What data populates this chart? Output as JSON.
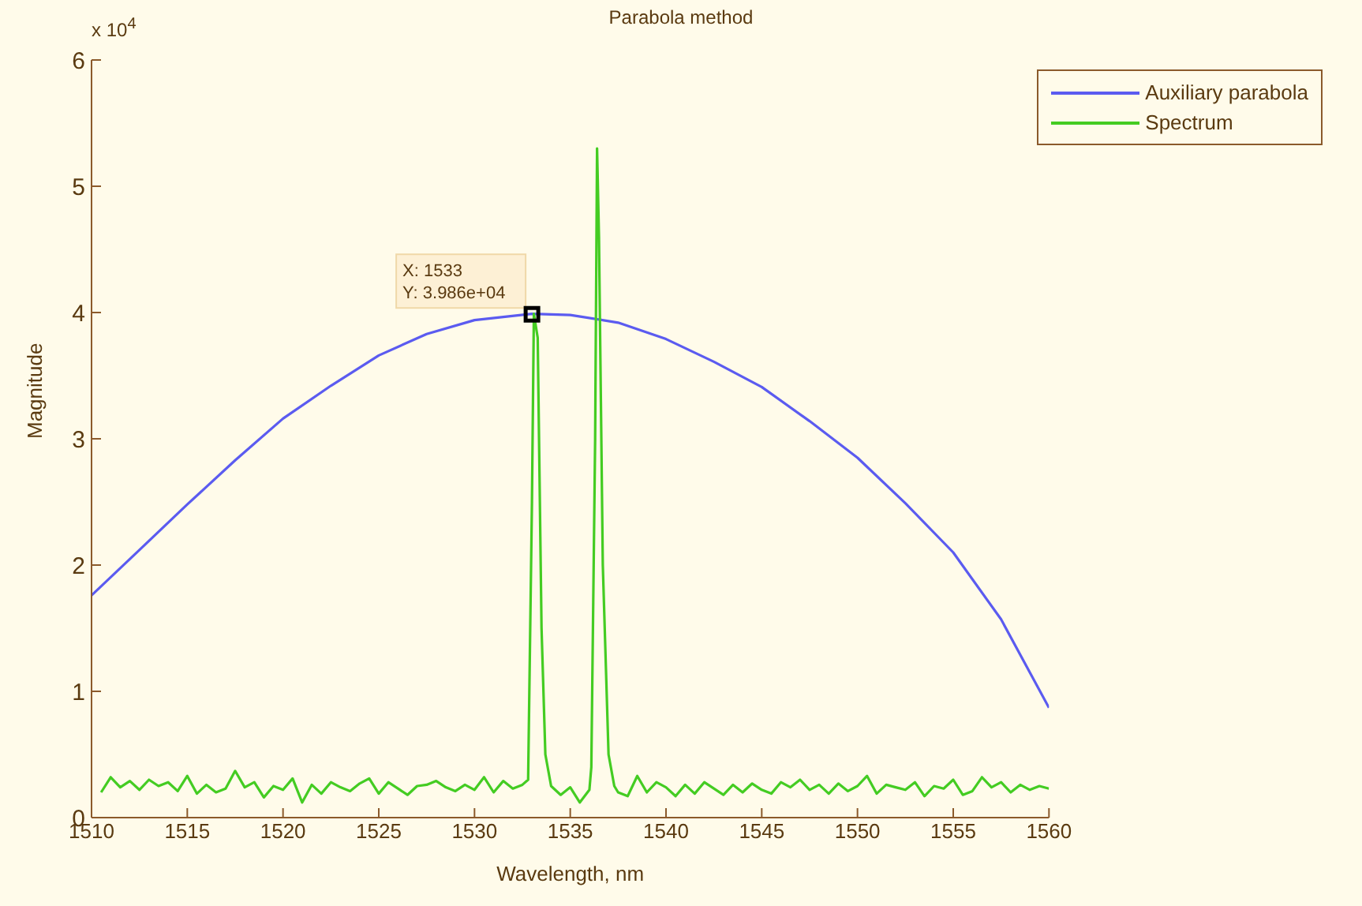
{
  "chart_data": {
    "type": "line",
    "title": "Parabola method",
    "xlabel": "Wavelength, nm",
    "ylabel": "Magnitude",
    "xlim": [
      1510,
      1560
    ],
    "xticks": [
      1510,
      1515,
      1520,
      1525,
      1530,
      1535,
      1540,
      1545,
      1550,
      1555,
      1560
    ],
    "ylim": [
      0,
      6
    ],
    "yticks": [
      0,
      1,
      2,
      3,
      4,
      5,
      6
    ],
    "legend": "top right",
    "marker": "none",
    "line_style": "solid",
    "annotations": [
      "x 10$^{4}$",
      {
        "text": "X: 1533\nY: 3.986e+04",
        "x": 1533,
        "y": 3.986
      }
    ],
    "series": [
      {
        "name": "Auxiliary parabola",
        "color": "#5b5bf0",
        "x": [
          1510,
          1512.5,
          1515,
          1517.5,
          1520,
          1522.5,
          1525,
          1527.5,
          1530,
          1533,
          1535,
          1537.5,
          1540,
          1542.5,
          1545,
          1547.5,
          1550,
          1552.5,
          1555,
          1557.5,
          1560
        ],
        "values": [
          1.76,
          2.12,
          2.48,
          2.83,
          3.16,
          3.42,
          3.66,
          3.83,
          3.94,
          3.99,
          3.98,
          3.92,
          3.79,
          3.61,
          3.41,
          3.14,
          2.85,
          2.49,
          2.1,
          1.57,
          0.87
        ]
      },
      {
        "name": "Spectrum",
        "color": "#44cc22",
        "x": [
          1510.5,
          1511,
          1511.5,
          1512,
          1512.5,
          1513,
          1513.5,
          1514,
          1514.5,
          1515,
          1515.5,
          1516,
          1516.5,
          1517,
          1517.5,
          1518,
          1518.5,
          1519,
          1519.5,
          1520,
          1520.5,
          1521,
          1521.5,
          1522,
          1522.5,
          1523,
          1523.5,
          1524,
          1524.5,
          1525,
          1525.5,
          1526,
          1526.5,
          1527,
          1527.5,
          1528,
          1528.5,
          1529,
          1529.5,
          1530,
          1530.5,
          1531,
          1531.5,
          1532,
          1532.5,
          1532.8,
          1533,
          1533.1,
          1533.3,
          1533.5,
          1533.7,
          1534,
          1534.5,
          1535,
          1535.5,
          1536,
          1536.1,
          1536.3,
          1536.4,
          1536.5,
          1536.7,
          1537,
          1537.3,
          1537.5,
          1538,
          1538.5,
          1539,
          1539.5,
          1540,
          1540.5,
          1541,
          1541.5,
          1542,
          1542.5,
          1543,
          1543.5,
          1544,
          1544.5,
          1545,
          1545.5,
          1546,
          1546.5,
          1547,
          1547.5,
          1548,
          1548.5,
          1549,
          1549.5,
          1550,
          1550.5,
          1551,
          1551.5,
          1552,
          1552.5,
          1553,
          1553.5,
          1554,
          1554.5,
          1555,
          1555.5,
          1556,
          1556.5,
          1557,
          1557.5,
          1558,
          1558.5,
          1559,
          1559.5,
          1560
        ],
        "values": [
          0.2,
          0.32,
          0.24,
          0.29,
          0.22,
          0.3,
          0.25,
          0.28,
          0.21,
          0.33,
          0.19,
          0.26,
          0.2,
          0.23,
          0.37,
          0.24,
          0.28,
          0.16,
          0.25,
          0.22,
          0.31,
          0.12,
          0.26,
          0.19,
          0.28,
          0.24,
          0.21,
          0.27,
          0.31,
          0.19,
          0.28,
          0.23,
          0.18,
          0.25,
          0.26,
          0.29,
          0.24,
          0.21,
          0.26,
          0.22,
          0.32,
          0.2,
          0.29,
          0.23,
          0.26,
          0.3,
          2.5,
          3.99,
          3.8,
          1.5,
          0.5,
          0.25,
          0.18,
          0.24,
          0.12,
          0.22,
          0.4,
          3.0,
          5.3,
          4.6,
          2.0,
          0.5,
          0.25,
          0.2,
          0.17,
          0.33,
          0.2,
          0.28,
          0.24,
          0.17,
          0.26,
          0.19,
          0.28,
          0.23,
          0.18,
          0.26,
          0.2,
          0.27,
          0.22,
          0.19,
          0.28,
          0.24,
          0.3,
          0.22,
          0.26,
          0.19,
          0.27,
          0.21,
          0.25,
          0.33,
          0.19,
          0.26,
          0.24,
          0.22,
          0.28,
          0.17,
          0.25,
          0.23,
          0.3,
          0.18,
          0.21,
          0.32,
          0.24,
          0.28,
          0.2,
          0.26,
          0.22,
          0.25,
          0.23
        ]
      }
    ]
  }
}
